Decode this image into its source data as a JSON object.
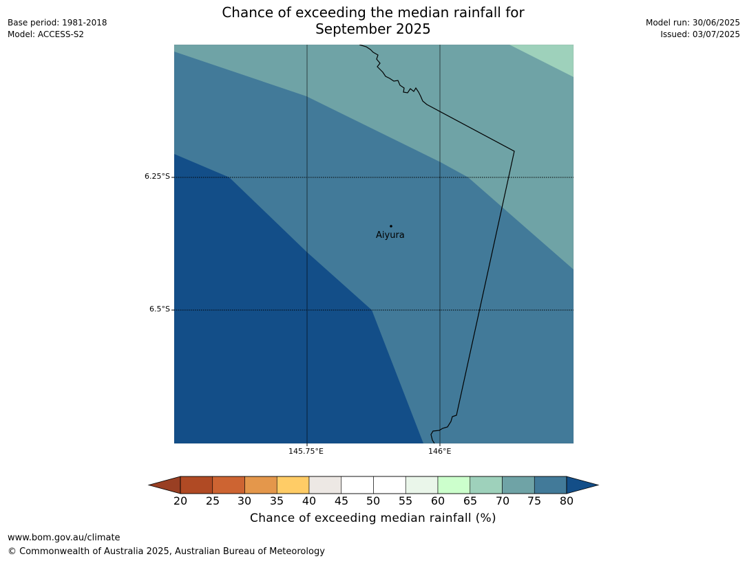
{
  "title_line1": "Chance of exceeding the median rainfall for",
  "title_line2": "September 2025",
  "base_period": "Base period: 1981-2018",
  "model": "Model: ACCESS-S2",
  "model_run": "Model run: 30/06/2025",
  "issued": "Issued: 03/07/2025",
  "map": {
    "lat_ticks": [
      "6.25°S",
      "6.5°S"
    ],
    "lon_ticks": [
      "145.75°E",
      "146°E"
    ],
    "place": "Aiyura",
    "zone_colors": {
      "z80": "#134e88",
      "z75": "#427a99",
      "z70": "#6fa3a6",
      "z65": "#9ed1bb"
    },
    "border_color": "#000000"
  },
  "colorbar": {
    "tick_labels": [
      "20",
      "25",
      "30",
      "35",
      "40",
      "45",
      "50",
      "55",
      "60",
      "65",
      "70",
      "75",
      "80"
    ],
    "under_color": "#993f23",
    "over_color": "#134e88",
    "segment_colors": [
      "#b04a24",
      "#cd6432",
      "#e4974b",
      "#ffcc66",
      "#ede8e4",
      "#ffffff",
      "#ffffff",
      "#eaf6ea",
      "#ccffcc",
      "#9ed1bb",
      "#6fa3a6",
      "#427a99"
    ],
    "label": "Chance of exceeding median rainfall (%)"
  },
  "footer": {
    "url": "www.bom.gov.au/climate",
    "copyright": "© Commonwealth of Australia 2025, Australian Bureau of Meteorology"
  }
}
